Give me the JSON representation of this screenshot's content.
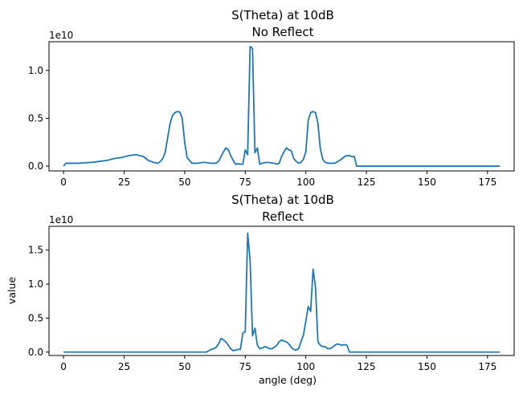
{
  "figure": {
    "line_color": "#1f77b4",
    "background": "#ffffff"
  },
  "chart_data": [
    {
      "type": "line",
      "title": "S(Theta) at 10dB",
      "subtitle": "No Reflect",
      "xlabel": "",
      "ylabel": "",
      "offset_text": "1e10",
      "xlim": [
        -6,
        186
      ],
      "ylim": [
        -0.05,
        1.3
      ],
      "x_ticks": [
        0,
        25,
        50,
        75,
        100,
        125,
        150,
        175
      ],
      "x_tick_labels": [
        "0",
        "25",
        "50",
        "75",
        "100",
        "125",
        "150",
        "175"
      ],
      "y_ticks": [
        0.0,
        0.5,
        1.0
      ],
      "y_tick_labels": [
        "0.0",
        "0.5",
        "1.0"
      ],
      "grid": false,
      "series": [
        {
          "x": [
            0,
            1,
            3,
            6,
            9,
            12,
            15,
            18,
            21,
            24,
            27,
            30,
            33,
            35,
            37,
            39,
            40,
            41,
            42,
            43,
            44,
            45,
            46,
            47,
            48,
            49,
            50,
            51,
            52,
            53,
            54,
            55,
            58,
            61,
            63,
            64,
            65,
            66,
            67,
            68,
            69,
            70,
            71,
            72,
            73,
            74,
            75,
            76,
            77,
            78,
            79,
            80,
            81,
            82,
            84,
            87,
            88,
            89,
            90,
            91,
            92,
            93,
            94,
            95,
            96,
            97,
            98,
            99,
            100,
            101,
            102,
            103,
            104,
            105,
            106,
            107,
            108,
            109,
            110,
            112,
            114,
            116,
            117,
            118,
            119,
            120,
            121,
            122,
            124,
            130,
            140,
            150,
            160,
            170,
            180
          ],
          "y": [
            0.0,
            0.03,
            0.03,
            0.03,
            0.035,
            0.04,
            0.05,
            0.06,
            0.08,
            0.09,
            0.11,
            0.12,
            0.1,
            0.06,
            0.04,
            0.03,
            0.05,
            0.08,
            0.15,
            0.3,
            0.45,
            0.53,
            0.56,
            0.57,
            0.565,
            0.5,
            0.25,
            0.09,
            0.06,
            0.03,
            0.03,
            0.03,
            0.04,
            0.03,
            0.03,
            0.05,
            0.1,
            0.15,
            0.19,
            0.17,
            0.11,
            0.06,
            0.02,
            0.025,
            0.02,
            0.02,
            0.17,
            0.12,
            1.25,
            1.23,
            0.14,
            0.19,
            0.02,
            0.03,
            0.04,
            0.03,
            0.02,
            0.03,
            0.1,
            0.15,
            0.19,
            0.17,
            0.16,
            0.08,
            0.05,
            0.03,
            0.04,
            0.07,
            0.15,
            0.48,
            0.56,
            0.57,
            0.56,
            0.45,
            0.18,
            0.07,
            0.04,
            0.03,
            0.03,
            0.03,
            0.06,
            0.1,
            0.11,
            0.11,
            0.1,
            0.1,
            0.0,
            0.0,
            0.0,
            0.0,
            0.0,
            0.0,
            0.0,
            0.0,
            0.0
          ]
        }
      ]
    },
    {
      "type": "line",
      "title": "S(Theta) at 10dB",
      "subtitle": "Reflect",
      "xlabel": "angle (deg)",
      "ylabel": "value",
      "offset_text": "1e10",
      "xlim": [
        -6,
        186
      ],
      "ylim": [
        -0.05,
        1.85
      ],
      "x_ticks": [
        0,
        25,
        50,
        75,
        100,
        125,
        150,
        175
      ],
      "x_tick_labels": [
        "0",
        "25",
        "50",
        "75",
        "100",
        "125",
        "150",
        "175"
      ],
      "y_ticks": [
        0.0,
        0.5,
        1.0,
        1.5
      ],
      "y_tick_labels": [
        "0.0",
        "0.5",
        "1.0",
        "1.5"
      ],
      "grid": false,
      "series": [
        {
          "x": [
            0,
            30,
            59,
            60,
            61,
            62,
            63,
            64,
            65,
            66,
            67,
            68,
            69,
            70,
            71,
            72,
            73,
            74,
            75,
            76,
            77,
            78,
            79,
            80,
            81,
            82,
            83,
            84,
            85,
            86,
            87,
            88,
            89,
            90,
            91,
            92,
            93,
            94,
            95,
            96,
            97,
            98,
            99,
            100,
            101,
            102,
            103,
            104,
            105,
            106,
            107,
            108,
            109,
            110,
            111,
            112,
            113,
            114,
            115,
            116,
            117,
            118,
            119,
            120,
            121,
            122,
            123,
            125,
            130,
            140,
            150,
            160,
            170,
            180
          ],
          "y": [
            0.0,
            0.0,
            0.0,
            0.02,
            0.04,
            0.05,
            0.07,
            0.12,
            0.2,
            0.18,
            0.15,
            0.1,
            0.05,
            0.02,
            0.03,
            0.04,
            0.04,
            0.28,
            0.3,
            1.75,
            1.35,
            0.24,
            0.35,
            0.1,
            0.05,
            0.06,
            0.08,
            0.07,
            0.05,
            0.05,
            0.07,
            0.1,
            0.15,
            0.18,
            0.16,
            0.15,
            0.12,
            0.07,
            0.04,
            0.03,
            0.05,
            0.15,
            0.25,
            0.45,
            0.67,
            0.6,
            1.22,
            0.95,
            0.15,
            0.1,
            0.08,
            0.08,
            0.05,
            0.05,
            0.07,
            0.1,
            0.12,
            0.11,
            0.1,
            0.11,
            0.1,
            0.0,
            0.0,
            0.0,
            0.0,
            0.0,
            0.0,
            0.0,
            0.0,
            0.0,
            0.0,
            0.0,
            0.0,
            0.0
          ]
        }
      ]
    }
  ]
}
